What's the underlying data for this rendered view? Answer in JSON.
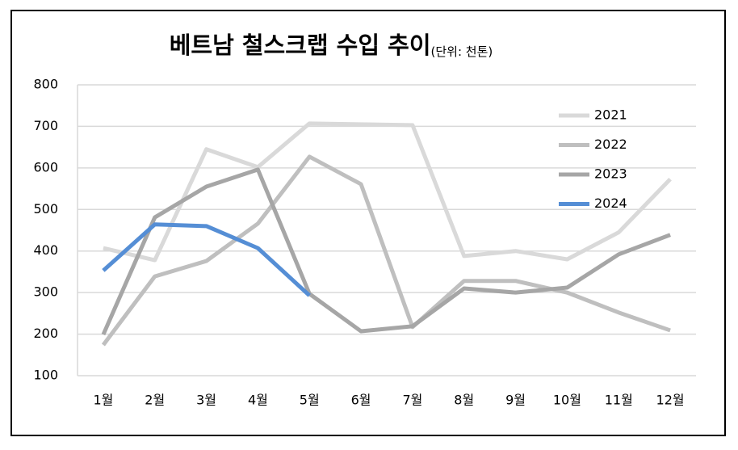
{
  "chart_data": {
    "type": "line",
    "title": "베트남 철스크랩 수입 추이",
    "subtitle": "(단위: 천톤)",
    "categories": [
      "1월",
      "2월",
      "3월",
      "4월",
      "5월",
      "6월",
      "7월",
      "8월",
      "9월",
      "10월",
      "11월",
      "12월"
    ],
    "series": [
      {
        "name": "2021",
        "color": "#d9d9d9",
        "values": [
          407,
          378,
          645,
          602,
          707,
          705,
          703,
          388,
          400,
          380,
          445,
          573
        ]
      },
      {
        "name": "2022",
        "color": "#bfbfbf",
        "values": [
          174,
          339,
          376,
          466,
          627,
          561,
          217,
          328,
          328,
          300,
          252,
          209
        ]
      },
      {
        "name": "2023",
        "color": "#a6a6a6",
        "values": [
          199,
          481,
          555,
          596,
          297,
          207,
          219,
          310,
          300,
          312,
          392,
          439
        ]
      },
      {
        "name": "2024",
        "color": "#558ed5",
        "values": [
          353,
          464,
          460,
          407,
          293,
          null,
          null,
          null,
          null,
          null,
          null,
          null
        ]
      }
    ],
    "ylim": [
      100,
      800
    ],
    "yticks": [
      100,
      200,
      300,
      400,
      500,
      600,
      700,
      800
    ],
    "grid": true,
    "legend": "upper right"
  }
}
